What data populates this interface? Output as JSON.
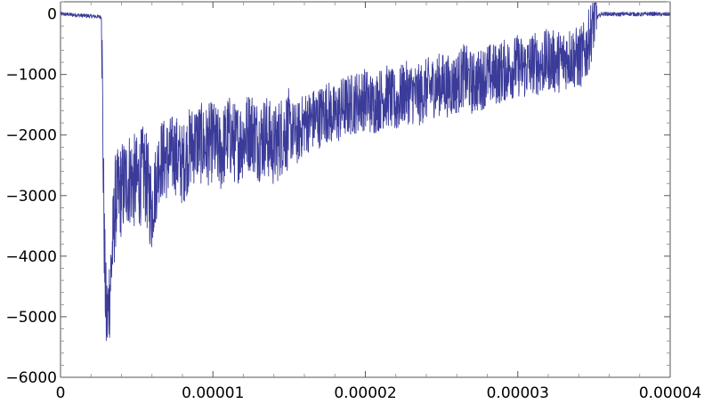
{
  "chart_data": {
    "type": "line",
    "title": "",
    "xlabel": "",
    "ylabel": "",
    "xlim": [
      0,
      4e-05
    ],
    "ylim": [
      -6000,
      200
    ],
    "grid": false,
    "x_tick_labels": [
      "0",
      "0.00001",
      "0.00002",
      "0.00003",
      "0.00004"
    ],
    "y_tick_labels": [
      "0",
      "−1000",
      "−2000",
      "−3000",
      "−4000",
      "−5000",
      "−6000"
    ],
    "series_color": "#3b3b9a",
    "series": [
      {
        "x": [
          0,
          2.7e-06,
          2.8e-06,
          2.9e-06,
          3e-06,
          3.1e-06,
          3.3e-06,
          3.6e-06,
          4e-06,
          4.5e-06,
          5e-06,
          5.5e-06,
          6e-06,
          6.5e-06,
          7e-06,
          7.5e-06,
          8e-06,
          8.5e-06,
          9e-06,
          9.5e-06,
          1e-05,
          1.05e-05,
          1.1e-05,
          1.15e-05,
          1.2e-05,
          1.25e-05,
          1.3e-05,
          1.35e-05,
          1.4e-05,
          1.45e-05,
          1.5e-05,
          1.55e-05,
          1.6e-05,
          1.65e-05,
          1.7e-05,
          1.75e-05,
          1.8e-05,
          1.85e-05,
          1.9e-05,
          1.95e-05,
          2e-05,
          2.05e-05,
          2.1e-05,
          2.15e-05,
          2.2e-05,
          2.25e-05,
          2.3e-05,
          2.35e-05,
          2.4e-05,
          2.45e-05,
          2.5e-05,
          2.55e-05,
          2.6e-05,
          2.65e-05,
          2.7e-05,
          2.75e-05,
          2.8e-05,
          2.85e-05,
          2.9e-05,
          2.95e-05,
          3e-05,
          3.05e-05,
          3.1e-05,
          3.15e-05,
          3.2e-05,
          3.25e-05,
          3.3e-05,
          3.35e-05,
          3.4e-05,
          3.45e-05,
          3.5e-05,
          3.55e-05,
          3.6e-05,
          3.65e-05,
          3.7e-05,
          3.75e-05,
          3.8e-05,
          3.85e-05,
          3.9e-05,
          3.95e-05,
          4e-05
        ],
        "y": [
          0,
          -50,
          -2500,
          -4200,
          -5000,
          -5000,
          -4300,
          -3100,
          -2900,
          -2700,
          -2800,
          -2600,
          -3200,
          -2400,
          -2400,
          -2300,
          -2500,
          -2200,
          -2100,
          -2200,
          -2100,
          -2300,
          -2000,
          -2150,
          -2050,
          -1900,
          -2100,
          -2000,
          -2200,
          -2000,
          -1900,
          -2000,
          -1800,
          -1750,
          -1700,
          -1600,
          -1700,
          -1550,
          -1500,
          -1450,
          -1400,
          -1500,
          -1400,
          -1350,
          -1500,
          -1300,
          -1300,
          -1350,
          -1250,
          -1200,
          -1150,
          -1200,
          -1150,
          -1000,
          -1150,
          -1100,
          -1000,
          -1000,
          -950,
          -900,
          -850,
          -900,
          -800,
          -850,
          -750,
          -800,
          -750,
          -700,
          -750,
          -600,
          -100,
          0,
          0,
          -10,
          0,
          0,
          -10,
          0,
          0,
          -10,
          0
        ]
      }
    ]
  }
}
